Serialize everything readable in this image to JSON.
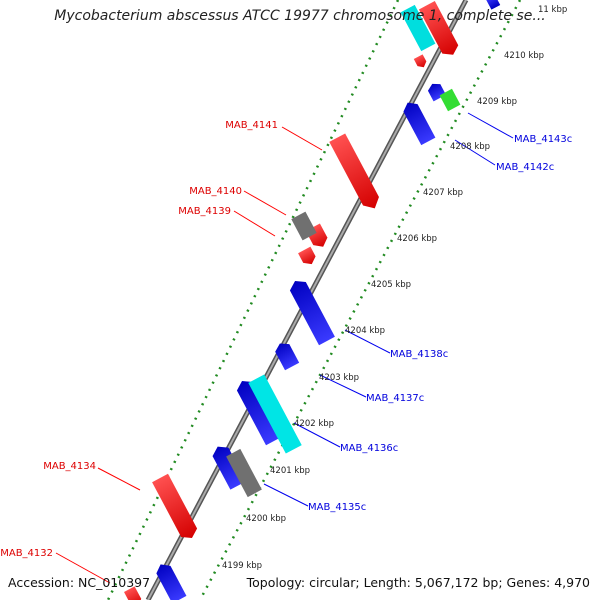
{
  "title": "Mycobacterium abscessus ATCC 19977 chromosome 1, complete se...",
  "footer": {
    "accession": "Accession: NC_010397",
    "summary": "Topology: circular; Length: 5,067,172 bp; Genes: 4,970"
  },
  "scale": {
    "top_partial": "11 kbp",
    "ticks": [
      "4210 kbp",
      "4209 kbp",
      "4208 kbp",
      "4207 kbp",
      "4206 kbp",
      "4205 kbp",
      "4204 kbp",
      "4203 kbp",
      "4202 kbp",
      "4201 kbp",
      "4200 kbp",
      "4199 kbp"
    ]
  },
  "gene_labels": {
    "forward": [
      "MAB_4141",
      "MAB_4140",
      "MAB_4139",
      "MAB_4134",
      "MAB_4132"
    ],
    "reverse": [
      "MAB_4143c",
      "MAB_4142c",
      "MAB_4138c",
      "MAB_4137c",
      "MAB_4136c",
      "MAB_4135c"
    ]
  },
  "colors": {
    "forward_gene": "#ff0000",
    "reverse_gene": "#0000ee",
    "cyan_gene": "#00e5e5",
    "grey_gene": "#707070",
    "green_gene": "#33dd33",
    "tick_dots": "#228b22",
    "backbone": "#888888"
  }
}
